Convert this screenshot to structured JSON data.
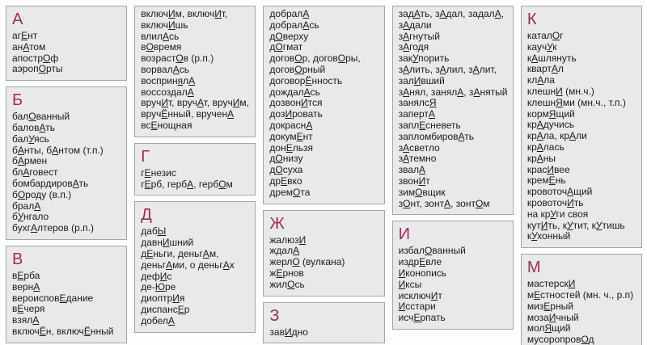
{
  "meta": {
    "content_kind": "russian-orthoepic-word-list",
    "stress_marker_format": "letters wrapped in [ ] are stressed: capitalized and underlined"
  },
  "colors": {
    "letter_header": "#a12a5e",
    "box_background": "#e9e9e9",
    "box_border": "#a5a5a5",
    "text": "#1b1b1b",
    "page_background": "#fdfdfd"
  },
  "columns": [
    {
      "boxes": [
        {
          "letter": "А",
          "lines": [
            "аг[Е]нт",
            "ан[А]том",
            "апостр[О]ф",
            "аэроп[О]рты"
          ]
        },
        {
          "letter": "Б",
          "lines": [
            "бал[О]ванный",
            "балов[А]ть",
            "бал[У]ясь",
            "б[А]нты, б[А]нтом (т.п.)",
            "б[А]рмен",
            "бл[А]говест",
            "бомбардиров[А]ть",
            "б[О]роду (в.п.)",
            "брал[А]",
            "б[У]нгало",
            "бухг[А]лтеров (р.п.)"
          ]
        },
        {
          "letter": "В",
          "lines": [
            "в[Е]рба",
            "верн[А]",
            "вероиспов[Е]дание",
            "в[Е]черя",
            "взял[А]",
            "включ[Ё]н, включ[Ё]нный"
          ]
        }
      ]
    },
    {
      "boxes": [
        {
          "letter": "",
          "lines": [
            "включ[И]м, включ[И]т,",
            "включ[И]шь",
            "влил[А]сь",
            "в[О]время",
            "возраст[О]в (р.п.)",
            "ворвал[А]сь",
            "восприн[я]л[А]",
            "воссоздал[А]",
            "вруч[И]т, вруч[А]т, вруч[И]м,",
            "вруч[Ё]нный, вручен[А]",
            "вс[Е]нощная"
          ]
        },
        {
          "letter": "Г",
          "lines": [
            "г[Е]незис",
            "г[Е]рб, герб[А], герб[О]м"
          ]
        },
        {
          "letter": "Д",
          "lines": [
            "даб[Ы]",
            "давн[И]шний",
            "д[Е]ньги, деньг[А]м,",
            "деньг[А]ми, о деньг[А]х",
            "деф[И]с",
            "де-[Ю]ре",
            "диоптр[И]я",
            "диспанс[Е]р",
            "добел[А]"
          ]
        }
      ]
    },
    {
      "boxes": [
        {
          "letter": "",
          "lines": [
            "добрал[А]",
            "добрал[А]сь",
            "д[О]верху",
            "д[О]гмат",
            "догов[О]р, догов[О]ры,",
            "догов[О]рный",
            "договор[Ё]нность",
            "дождал[А]сь",
            "дозвон[И]тся",
            "доз[И]ровать",
            "докрасн[А]",
            "докум[Е]нт",
            "дон[Е]льзя",
            "д[О]низу",
            "д[О]суха",
            "др[Е]вко",
            "дрем[О]та"
          ]
        },
        {
          "letter": "Ж",
          "lines": [
            "жалюз[И]",
            "ждал[А]",
            "жерл[О] (вулкана)",
            "ж[Е]рнов",
            "жил[О]сь"
          ]
        },
        {
          "letter": "З",
          "lines": [
            "зав[И]дно"
          ]
        }
      ]
    },
    {
      "boxes": [
        {
          "letter": "",
          "lines": [
            "зад[А]ть, з[А]дал, задал[А],",
            "з[А]дали",
            "з[А]гнутый",
            "з[А]годя",
            "зак[У]порить",
            "з[А]лить, з[А]лил, з[А]лит,",
            "зал[И]вший",
            "з[А]нял, занял[А], з[А]нятый",
            "занялс[Я]",
            "заперт[А]",
            "запл[Е]сневеть",
            "запломбиров[А]ть",
            "з[А]светло",
            "з[А]темно",
            "звал[А]",
            "звон[И]т",
            "зим[О]вщик",
            "з[О]нт, зонт[А], зонт[О]м"
          ]
        },
        {
          "letter": "И",
          "lines": [
            "избал[О]ванный",
            "издр[Е]вле",
            "[И]конопись",
            "[И]ксы",
            "исключ[И]т",
            "[И]сстари",
            "исч[Е]рпать"
          ]
        }
      ]
    },
    {
      "boxes": [
        {
          "letter": "К",
          "lines": [
            "катал[О]г",
            "кауч[У]к",
            "к[А]шлянуть",
            "кварт[А]л",
            "кл[А]ла",
            "клешн[И] (мн.ч.)",
            "клешн[Я]ми (мн.ч., т.п.)",
            "корм[Я]щий",
            "кр[А]дучись",
            "кр[А]ла, кр[А]ли",
            "кр[А]лась",
            "кр[А]ны",
            "крас[И]вее",
            "крем[Е]нь",
            "кровоточ[А]щий",
            "кровоточ[И]ть",
            "на кр[У]ги своя",
            "кут[И]ть, к[У]тит, к[У]тишь",
            "к[У]хонный"
          ]
        },
        {
          "letter": "М",
          "lines": [
            "мастерск[И]",
            "м[Е]стностей (мн. ч., р.п)",
            "миз[Е]рный",
            "моза[И]чный",
            "мол[Я]щий",
            "мусоропров[О]д"
          ]
        }
      ]
    }
  ]
}
